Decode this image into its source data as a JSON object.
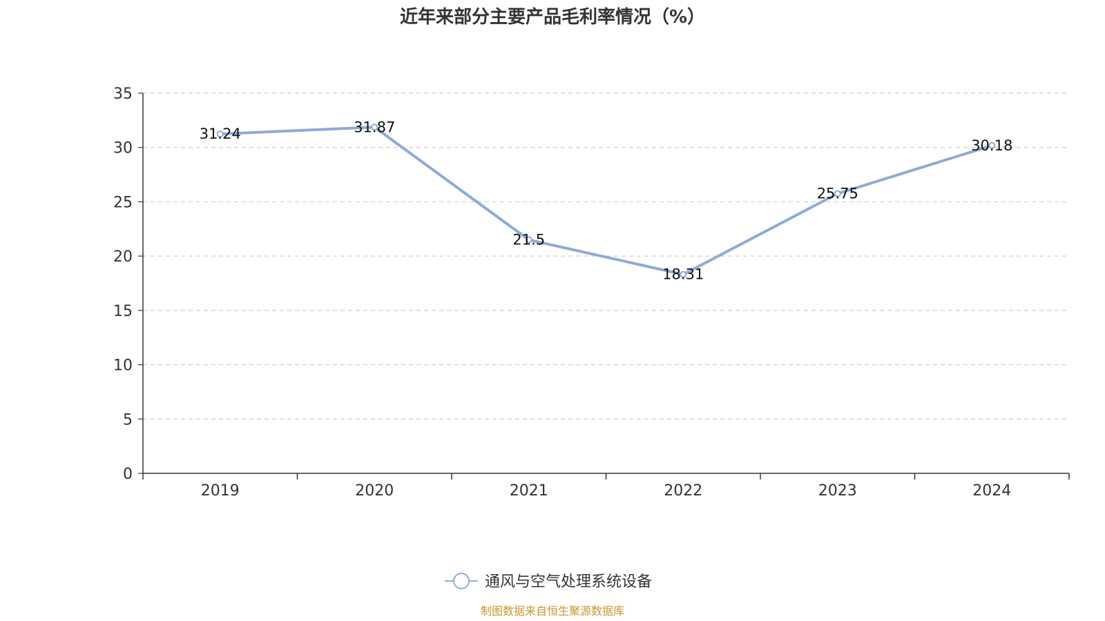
{
  "chart_data": {
    "type": "line",
    "title": "近年来部分主要产品毛利率情况（%）",
    "categories": [
      "2019",
      "2020",
      "2021",
      "2022",
      "2023",
      "2024"
    ],
    "series": [
      {
        "name": "通风与空气处理系统设备",
        "values": [
          31.24,
          31.87,
          21.5,
          18.31,
          25.75,
          30.18
        ],
        "labels": [
          "31.24",
          "31.87",
          "21.5",
          "18.31",
          "25.75",
          "30.18"
        ],
        "color": "#8eaad8"
      }
    ],
    "ylim": [
      0,
      35
    ],
    "yticks": [
      0,
      5,
      10,
      15,
      20,
      25,
      30,
      35
    ],
    "grid": true,
    "legend_position": "bottom-center"
  },
  "source": {
    "text": "制图数据来自恒生聚源数据库",
    "color": "#c8962e"
  }
}
